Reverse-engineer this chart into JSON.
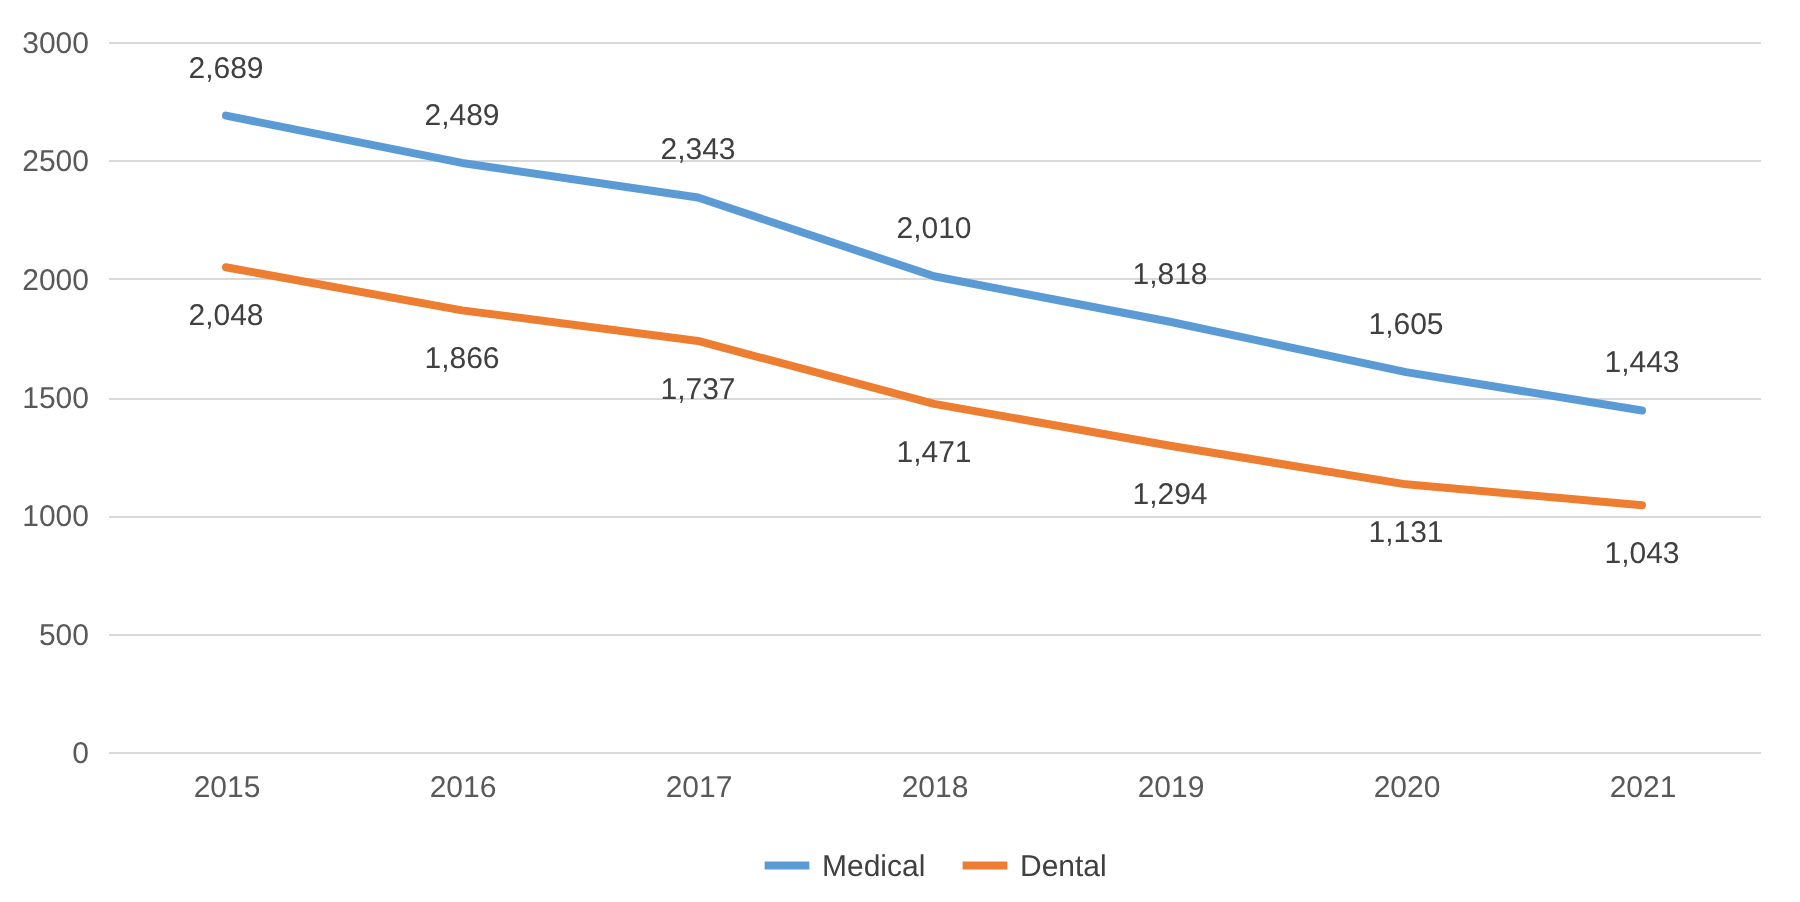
{
  "chart_data": {
    "type": "line",
    "categories": [
      "2015",
      "2016",
      "2017",
      "2018",
      "2019",
      "2020",
      "2021"
    ],
    "series": [
      {
        "name": "Medical",
        "color": "#5b9bd5",
        "values": [
          2689,
          2489,
          2343,
          2010,
          1818,
          1605,
          1443
        ],
        "value_labels": [
          "2,689",
          "2,489",
          "2,343",
          "2,010",
          "1,818",
          "1,605",
          "1,443"
        ]
      },
      {
        "name": "Dental",
        "color": "#ed7d31",
        "values": [
          2048,
          1866,
          1737,
          1471,
          1294,
          1131,
          1043
        ],
        "value_labels": [
          "2,048",
          "1,866",
          "1,737",
          "1,471",
          "1,294",
          "1,131",
          "1,043"
        ]
      }
    ],
    "ylim": [
      0,
      3000
    ],
    "yticks": [
      0,
      500,
      1000,
      1500,
      2000,
      2500,
      3000
    ],
    "grid": "y",
    "legend": "bottom"
  }
}
